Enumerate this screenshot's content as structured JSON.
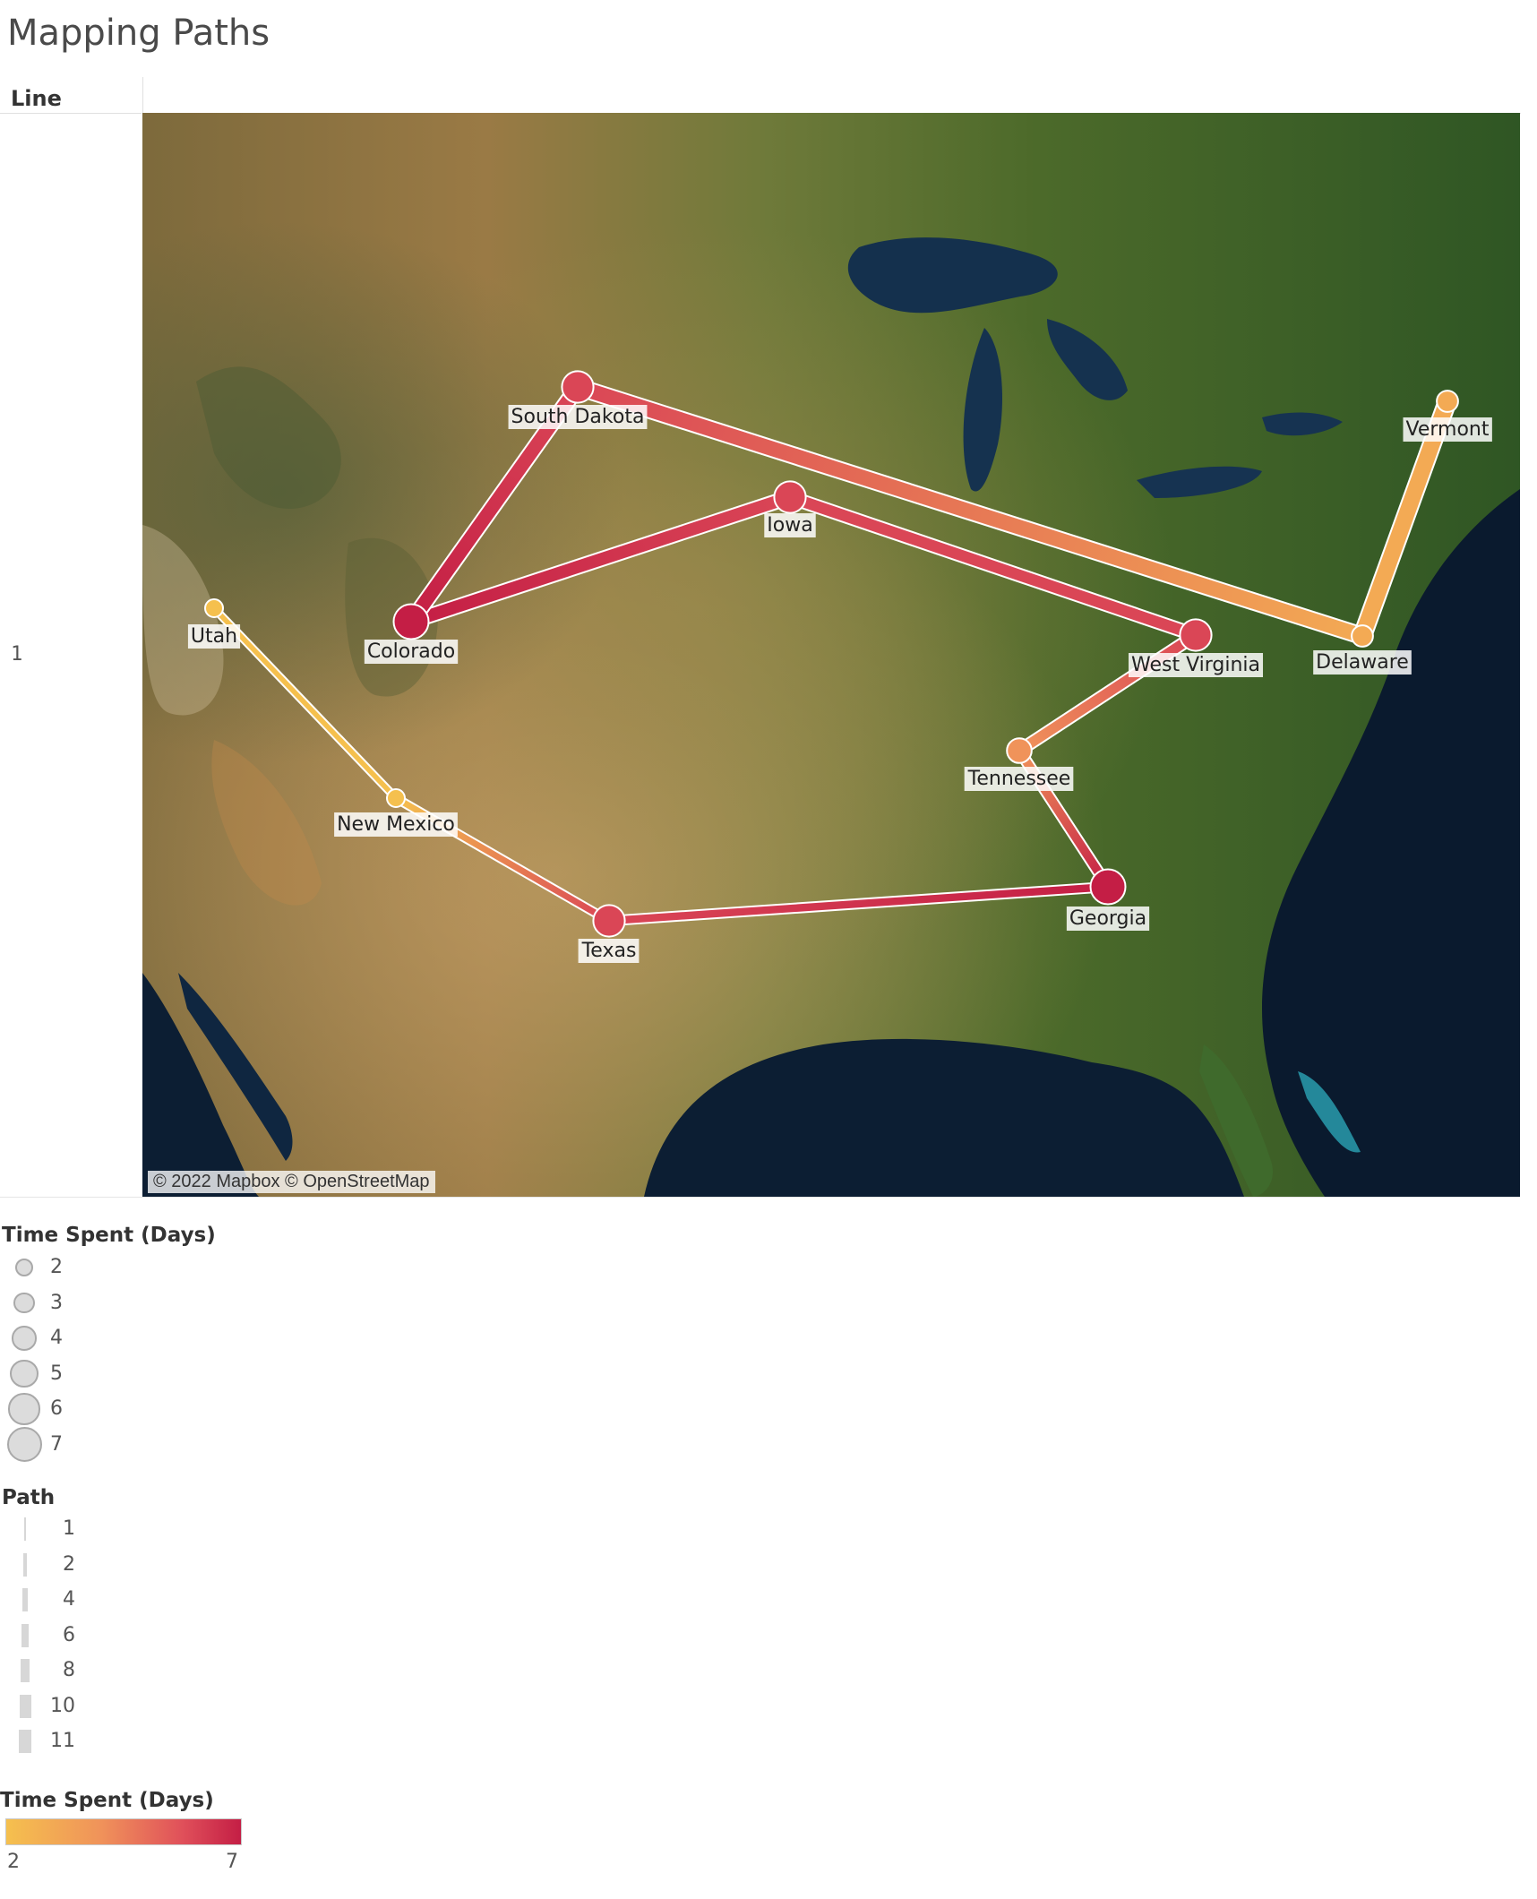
{
  "title": "Mapping Paths",
  "rows_header": "Line",
  "row_value": "1",
  "map": {
    "attribution": "© 2022 Mapbox © OpenStreetMap",
    "stops": [
      {
        "name": "Utah",
        "order": 1,
        "days": 2
      },
      {
        "name": "New Mexico",
        "order": 2,
        "days": 2
      },
      {
        "name": "Texas",
        "order": 3,
        "days": 6
      },
      {
        "name": "Georgia",
        "order": 4,
        "days": 7
      },
      {
        "name": "Tennessee",
        "order": 5,
        "days": 4
      },
      {
        "name": "West Virginia",
        "order": 6,
        "days": 6
      },
      {
        "name": "Iowa",
        "order": 7,
        "days": 6
      },
      {
        "name": "Colorado",
        "order": 8,
        "days": 7
      },
      {
        "name": "South Dakota",
        "order": 9,
        "days": 6
      },
      {
        "name": "Delaware",
        "order": 10,
        "days": 3
      },
      {
        "name": "Vermont",
        "order": 11,
        "days": 3
      }
    ]
  },
  "legend_size": {
    "title": "Time Spent (Days)",
    "items": [
      "2",
      "3",
      "4",
      "5",
      "6",
      "7"
    ]
  },
  "legend_path": {
    "title": "Path",
    "items": [
      "1",
      "2",
      "4",
      "6",
      "8",
      "10",
      "11"
    ]
  },
  "legend_color": {
    "title": "Time Spent (Days)",
    "min_label": "2",
    "max_label": "7",
    "min_color": "#f5c04e",
    "max_color": "#c41e45"
  }
}
